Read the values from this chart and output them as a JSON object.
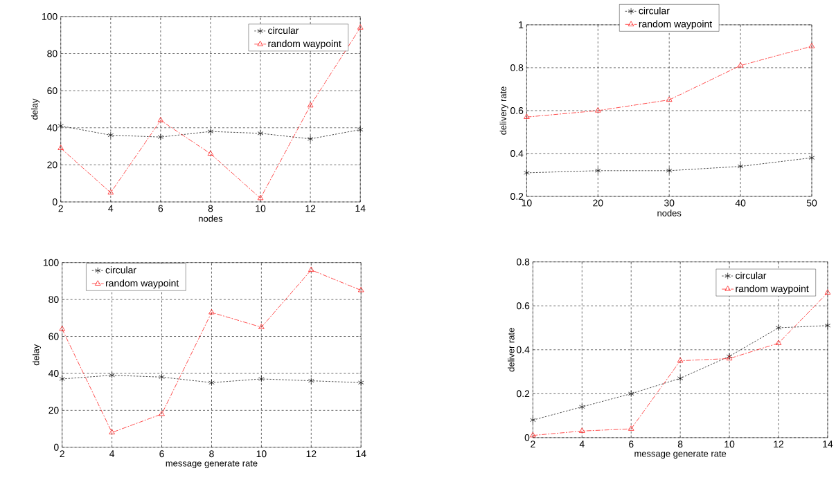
{
  "chart_data": [
    {
      "type": "line",
      "xlabel": "nodes",
      "ylabel": "delay",
      "x": [
        2,
        4,
        6,
        8,
        10,
        12,
        14
      ],
      "xlim": [
        2,
        14
      ],
      "ylim": [
        0,
        100
      ],
      "xticks": [
        2,
        4,
        6,
        8,
        10,
        12,
        14
      ],
      "yticks": [
        0,
        20,
        40,
        60,
        80,
        100
      ],
      "grid": true,
      "legend": "top right",
      "series": [
        {
          "name": "circular",
          "color": "#000000",
          "marker": "cross",
          "line_style": "dotted",
          "values": [
            41,
            36,
            35,
            38,
            37,
            34,
            39
          ]
        },
        {
          "name": "random waypoint",
          "color": "#ff0000",
          "marker": "triangle",
          "line_style": "dashed",
          "values": [
            29,
            5,
            44,
            26,
            2,
            52,
            94
          ]
        }
      ]
    },
    {
      "type": "line",
      "xlabel": "nodes",
      "ylabel": "delivery rate",
      "x": [
        10,
        20,
        30,
        40,
        50
      ],
      "xlim": [
        10,
        50
      ],
      "ylim": [
        0.2,
        1
      ],
      "xticks": [
        10,
        20,
        30,
        40,
        50
      ],
      "yticks": [
        0.2,
        0.4,
        0.6,
        0.8,
        1
      ],
      "grid": true,
      "legend": "top",
      "series": [
        {
          "name": "circular",
          "color": "#000000",
          "marker": "cross",
          "line_style": "dotted",
          "values": [
            0.31,
            0.32,
            0.32,
            0.34,
            0.38
          ]
        },
        {
          "name": "random waypoint",
          "color": "#ff0000",
          "marker": "triangle",
          "line_style": "dashed",
          "values": [
            0.57,
            0.6,
            0.65,
            0.81,
            0.9
          ]
        }
      ]
    },
    {
      "type": "line",
      "xlabel": "message generate rate",
      "ylabel": "delay",
      "x": [
        2,
        4,
        6,
        8,
        10,
        12,
        14
      ],
      "xlim": [
        2,
        14
      ],
      "ylim": [
        0,
        100
      ],
      "xticks": [
        2,
        4,
        6,
        8,
        10,
        12,
        14
      ],
      "yticks": [
        0,
        20,
        40,
        60,
        80,
        100
      ],
      "grid": true,
      "legend": "top left",
      "series": [
        {
          "name": "circular",
          "color": "#000000",
          "marker": "cross",
          "line_style": "dotted",
          "values": [
            37,
            39,
            38,
            35,
            37,
            36,
            35
          ]
        },
        {
          "name": "random waypoint",
          "color": "#ff0000",
          "marker": "triangle",
          "line_style": "dashed",
          "values": [
            64,
            8,
            18,
            73,
            65,
            96,
            85
          ]
        }
      ]
    },
    {
      "type": "line",
      "xlabel": "message generate rate",
      "ylabel": "deliver rate",
      "x": [
        2,
        4,
        6,
        8,
        10,
        12,
        14
      ],
      "xlim": [
        2,
        14
      ],
      "ylim": [
        0,
        0.8
      ],
      "xticks": [
        2,
        4,
        6,
        8,
        10,
        12,
        14
      ],
      "yticks": [
        0,
        0.2,
        0.4,
        0.6,
        0.8
      ],
      "grid": true,
      "legend": "top right",
      "series": [
        {
          "name": "circular",
          "color": "#000000",
          "marker": "cross",
          "line_style": "dotted",
          "values": [
            0.08,
            0.14,
            0.2,
            0.27,
            0.37,
            0.5,
            0.51
          ]
        },
        {
          "name": "random waypoint",
          "color": "#ff0000",
          "marker": "triangle",
          "line_style": "dashed",
          "values": [
            0.01,
            0.03,
            0.04,
            0.35,
            0.36,
            0.43,
            0.66
          ]
        }
      ]
    }
  ]
}
